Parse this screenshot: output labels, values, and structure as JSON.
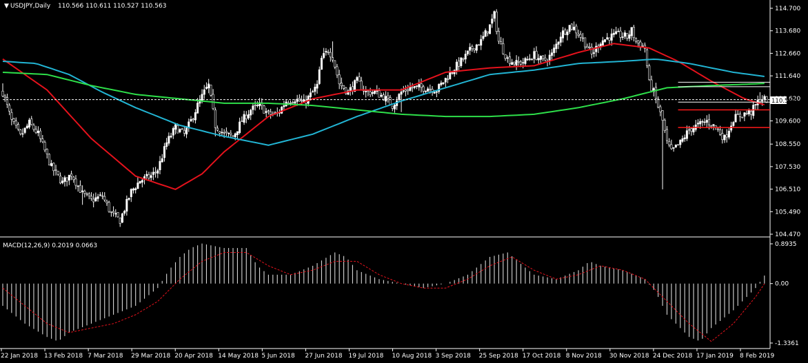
{
  "header": {
    "symbol": "USDJPY,Daily",
    "ohlc": "110.566 110.611 110.527 110.563"
  },
  "macd_header": {
    "label": "MACD(12,26,9) 0.2019 0.0663"
  },
  "current_price_label": "110.563",
  "colors": {
    "background": "#000000",
    "bull_candle": "#ffffff",
    "bear_candle": "#000000",
    "ma_red": "#e5121c",
    "ma_cyan": "#22b5d4",
    "ma_green": "#2ee04a",
    "level_red": "#ff1a1a",
    "level_white": "#ffffff",
    "macd_hist": "#d8d8d8",
    "macd_signal": "#e5121c",
    "axis": "#ffffff"
  },
  "chart_data": [
    {
      "type": "candlestick",
      "title": "USDJPY,Daily",
      "ylim": [
        104.47,
        114.7
      ],
      "y_ticks": [
        "114.700",
        "113.680",
        "112.660",
        "111.640",
        "110.620",
        "110.563",
        "109.600",
        "108.550",
        "107.530",
        "106.510",
        "105.490",
        "104.470"
      ],
      "x_ticks": [
        "22 Jan 2018",
        "13 Feb 2018",
        "7 Mar 2018",
        "29 Mar 2018",
        "20 Apr 2018",
        "14 May 2018",
        "5 Jun 2018",
        "27 Jun 2018",
        "19 Jul 2018",
        "10 Aug 2018",
        "3 Sep 2018",
        "25 Sep 2018",
        "17 Oct 2018",
        "8 Nov 2018",
        "30 Nov 2018",
        "24 Dec 2018",
        "17 Jan 2019",
        "8 Feb 2019"
      ],
      "close_path": [
        [
          0,
          110.9
        ],
        [
          4,
          109.6
        ],
        [
          8,
          108.9
        ],
        [
          12,
          109.5
        ],
        [
          16,
          109.0
        ],
        [
          22,
          107.5
        ],
        [
          27,
          106.8
        ],
        [
          31,
          107.2
        ],
        [
          36,
          106.3
        ],
        [
          40,
          106.0
        ],
        [
          45,
          106.2
        ],
        [
          49,
          105.4
        ],
        [
          53,
          105.1
        ],
        [
          58,
          106.4
        ],
        [
          62,
          106.9
        ],
        [
          67,
          107.1
        ],
        [
          70,
          107.4
        ],
        [
          74,
          108.6
        ],
        [
          78,
          109.3
        ],
        [
          82,
          109.0
        ],
        [
          85,
          109.6
        ],
        [
          88,
          110.3
        ],
        [
          91,
          110.9
        ],
        [
          93,
          111.2
        ],
        [
          96,
          109.4
        ],
        [
          100,
          109.0
        ],
        [
          104,
          108.9
        ],
        [
          108,
          109.6
        ],
        [
          112,
          110.1
        ],
        [
          116,
          110.3
        ],
        [
          120,
          109.9
        ],
        [
          124,
          109.9
        ],
        [
          128,
          110.5
        ],
        [
          132,
          110.6
        ],
        [
          136,
          110.4
        ],
        [
          140,
          110.9
        ],
        [
          142,
          111.2
        ],
        [
          144,
          112.4
        ],
        [
          147,
          112.8
        ],
        [
          149,
          112.5
        ],
        [
          152,
          111.3
        ],
        [
          156,
          110.9
        ],
        [
          160,
          111.4
        ],
        [
          164,
          110.9
        ],
        [
          168,
          110.9
        ],
        [
          172,
          110.7
        ],
        [
          176,
          110.3
        ],
        [
          180,
          110.9
        ],
        [
          184,
          111.1
        ],
        [
          188,
          111.1
        ],
        [
          192,
          111.1
        ],
        [
          196,
          111.0
        ],
        [
          200,
          111.5
        ],
        [
          204,
          112.0
        ],
        [
          208,
          112.4
        ],
        [
          212,
          112.9
        ],
        [
          216,
          113.2
        ],
        [
          220,
          113.9
        ],
        [
          222,
          114.4
        ],
        [
          224,
          113.2
        ],
        [
          228,
          112.4
        ],
        [
          232,
          112.2
        ],
        [
          236,
          112.3
        ],
        [
          240,
          112.6
        ],
        [
          244,
          112.3
        ],
        [
          248,
          112.6
        ],
        [
          252,
          113.5
        ],
        [
          256,
          113.9
        ],
        [
          258,
          113.8
        ],
        [
          262,
          113.3
        ],
        [
          266,
          112.6
        ],
        [
          270,
          113.2
        ],
        [
          274,
          113.4
        ],
        [
          278,
          113.5
        ],
        [
          282,
          113.4
        ],
        [
          284,
          113.7
        ],
        [
          286,
          113.2
        ],
        [
          290,
          112.9
        ],
        [
          292,
          111.3
        ],
        [
          294,
          110.9
        ],
        [
          298,
          109.6
        ],
        [
          300,
          108.6
        ],
        [
          302,
          108.2
        ],
        [
          306,
          108.6
        ],
        [
          310,
          109.2
        ],
        [
          314,
          109.4
        ],
        [
          318,
          109.6
        ],
        [
          322,
          109.3
        ],
        [
          326,
          108.8
        ],
        [
          330,
          109.7
        ],
        [
          334,
          109.9
        ],
        [
          338,
          110.0
        ],
        [
          342,
          110.6
        ],
        [
          345,
          110.563
        ]
      ],
      "lows": [
        [
          4,
          109.4
        ],
        [
          36,
          105.8
        ],
        [
          53,
          104.8
        ],
        [
          96,
          108.9
        ],
        [
          180,
          110.0
        ],
        [
          232,
          111.9
        ],
        [
          298,
          106.5
        ],
        [
          326,
          108.6
        ]
      ],
      "highs": [
        [
          0,
          111.3
        ],
        [
          93,
          111.5
        ],
        [
          149,
          113.2
        ],
        [
          222,
          114.6
        ],
        [
          258,
          114.1
        ],
        [
          284,
          113.8
        ],
        [
          342,
          110.9
        ]
      ],
      "series": [
        {
          "name": "",
          "points": [
            [
              0,
              112.4
            ],
            [
              20,
              111.0
            ],
            [
              40,
              108.8
            ],
            [
              60,
              107.1
            ],
            [
              78,
              106.5
            ],
            [
              90,
              107.2
            ],
            [
              100,
              108.2
            ],
            [
              120,
              109.8
            ],
            [
              140,
              110.6
            ],
            [
              160,
              111.0
            ],
            [
              180,
              111.0
            ],
            [
              200,
              111.8
            ],
            [
              220,
              112.0
            ],
            [
              240,
              112.1
            ],
            [
              260,
              112.7
            ],
            [
              276,
              113.1
            ],
            [
              292,
              112.9
            ],
            [
              305,
              112.3
            ],
            [
              320,
              111.4
            ],
            [
              335,
              110.6
            ],
            [
              345,
              110.3
            ]
          ]
        },
        {
          "name": "",
          "points": [
            [
              0,
              112.3
            ],
            [
              15,
              112.2
            ],
            [
              30,
              111.7
            ],
            [
              45,
              110.9
            ],
            [
              60,
              110.2
            ],
            [
              80,
              109.4
            ],
            [
              100,
              108.9
            ],
            [
              120,
              108.5
            ],
            [
              140,
              109.0
            ],
            [
              160,
              109.8
            ],
            [
              180,
              110.5
            ],
            [
              200,
              111.1
            ],
            [
              220,
              111.7
            ],
            [
              240,
              111.9
            ],
            [
              260,
              112.2
            ],
            [
              280,
              112.3
            ],
            [
              295,
              112.4
            ],
            [
              310,
              112.2
            ],
            [
              330,
              111.8
            ],
            [
              345,
              111.6
            ]
          ]
        },
        {
          "name": "",
          "points": [
            [
              0,
              111.8
            ],
            [
              20,
              111.7
            ],
            [
              40,
              111.2
            ],
            [
              60,
              110.8
            ],
            [
              80,
              110.6
            ],
            [
              100,
              110.4
            ],
            [
              120,
              110.4
            ],
            [
              140,
              110.3
            ],
            [
              160,
              110.1
            ],
            [
              180,
              109.9
            ],
            [
              200,
              109.8
            ],
            [
              220,
              109.8
            ],
            [
              240,
              109.9
            ],
            [
              260,
              110.2
            ],
            [
              280,
              110.6
            ],
            [
              300,
              111.1
            ],
            [
              320,
              111.2
            ],
            [
              345,
              111.3
            ]
          ]
        }
      ],
      "levels": [
        {
          "value": 110.563,
          "color": "white"
        },
        {
          "value": 110.45,
          "color": "white",
          "from": 305
        },
        {
          "value": 110.1,
          "color": "red",
          "from": 305
        },
        {
          "value": 109.3,
          "color": "red",
          "from": 305
        },
        {
          "value": 111.35,
          "color": "white",
          "from": 305
        },
        {
          "value": 111.15,
          "color": "white",
          "from": 305
        }
      ]
    },
    {
      "type": "histogram",
      "title": "MACD(12,26,9) 0.2019 0.0663",
      "ylim": [
        -1.3361,
        0.8935
      ],
      "y_ticks": [
        "0.8935",
        "0.00",
        "-1.3361"
      ],
      "histogram": [
        [
          0,
          -0.5
        ],
        [
          10,
          -0.9
        ],
        [
          20,
          -1.2
        ],
        [
          25,
          -1.3
        ],
        [
          30,
          -1.1
        ],
        [
          40,
          -0.9
        ],
        [
          50,
          -0.7
        ],
        [
          60,
          -0.5
        ],
        [
          70,
          -0.1
        ],
        [
          75,
          0.3
        ],
        [
          80,
          0.6
        ],
        [
          85,
          0.8
        ],
        [
          90,
          0.9
        ],
        [
          100,
          0.8
        ],
        [
          110,
          0.8
        ],
        [
          115,
          0.4
        ],
        [
          120,
          0.2
        ],
        [
          130,
          0.2
        ],
        [
          140,
          0.4
        ],
        [
          150,
          0.7
        ],
        [
          155,
          0.6
        ],
        [
          160,
          0.3
        ],
        [
          170,
          0.1
        ],
        [
          180,
          0.0
        ],
        [
          190,
          -0.1
        ],
        [
          200,
          0.0
        ],
        [
          210,
          0.2
        ],
        [
          220,
          0.6
        ],
        [
          228,
          0.7
        ],
        [
          235,
          0.4
        ],
        [
          240,
          0.2
        ],
        [
          250,
          0.1
        ],
        [
          260,
          0.3
        ],
        [
          265,
          0.5
        ],
        [
          270,
          0.4
        ],
        [
          280,
          0.3
        ],
        [
          290,
          0.1
        ],
        [
          295,
          -0.2
        ],
        [
          300,
          -0.7
        ],
        [
          310,
          -1.2
        ],
        [
          315,
          -1.3
        ],
        [
          320,
          -1.0
        ],
        [
          330,
          -0.6
        ],
        [
          340,
          -0.1
        ],
        [
          345,
          0.25
        ]
      ],
      "signal": [
        [
          0,
          -0.1
        ],
        [
          10,
          -0.5
        ],
        [
          20,
          -0.9
        ],
        [
          30,
          -1.1
        ],
        [
          40,
          -1.0
        ],
        [
          50,
          -0.9
        ],
        [
          60,
          -0.7
        ],
        [
          70,
          -0.4
        ],
        [
          80,
          0.1
        ],
        [
          90,
          0.5
        ],
        [
          100,
          0.7
        ],
        [
          110,
          0.7
        ],
        [
          120,
          0.4
        ],
        [
          130,
          0.2
        ],
        [
          140,
          0.3
        ],
        [
          150,
          0.5
        ],
        [
          160,
          0.5
        ],
        [
          170,
          0.2
        ],
        [
          180,
          0.0
        ],
        [
          190,
          -0.1
        ],
        [
          200,
          -0.1
        ],
        [
          210,
          0.1
        ],
        [
          220,
          0.4
        ],
        [
          230,
          0.6
        ],
        [
          240,
          0.3
        ],
        [
          250,
          0.1
        ],
        [
          260,
          0.2
        ],
        [
          270,
          0.4
        ],
        [
          280,
          0.3
        ],
        [
          290,
          0.1
        ],
        [
          300,
          -0.4
        ],
        [
          310,
          -0.9
        ],
        [
          320,
          -1.3
        ],
        [
          330,
          -0.9
        ],
        [
          340,
          -0.3
        ],
        [
          345,
          0.07
        ]
      ]
    }
  ]
}
